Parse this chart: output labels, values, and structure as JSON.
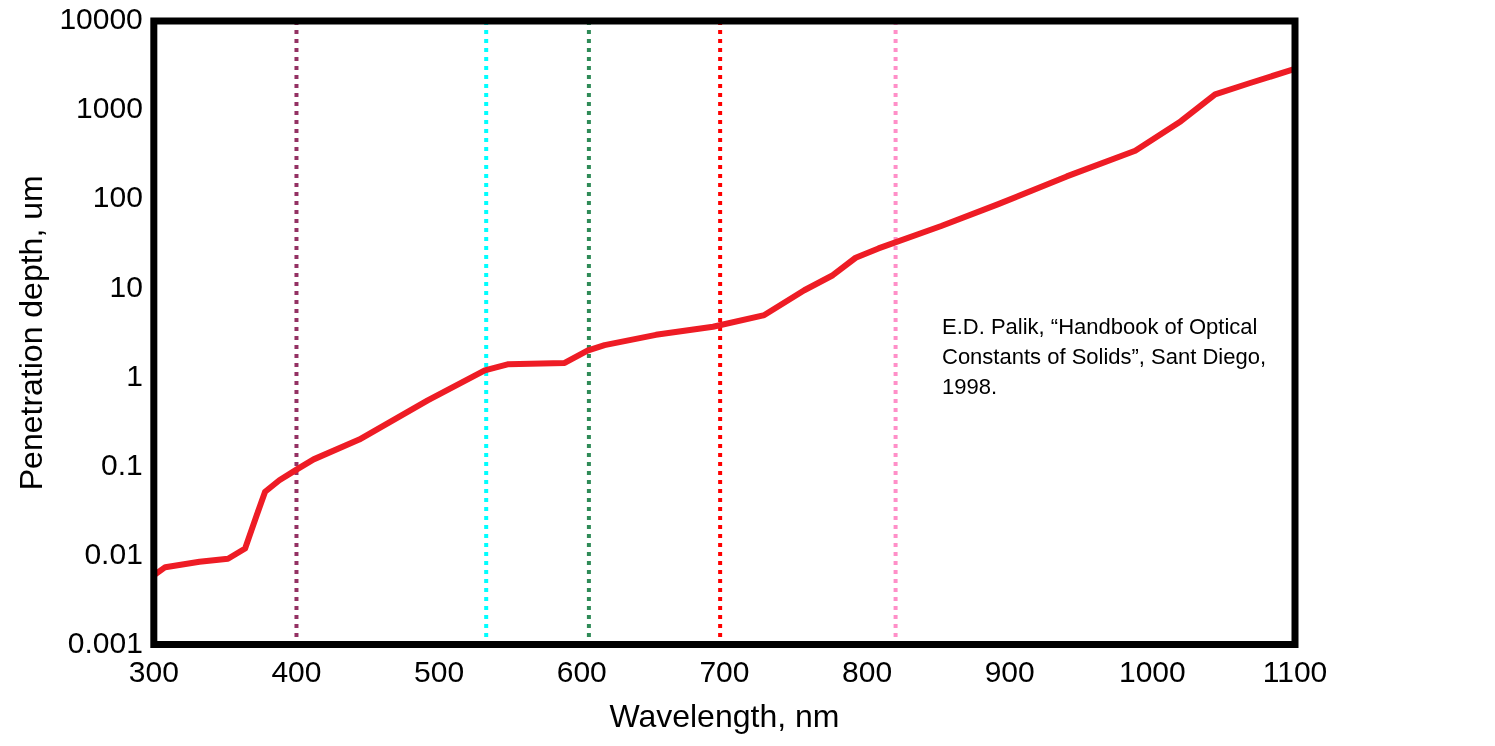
{
  "chart_data": {
    "type": "line",
    "xlabel": "Wavelength, nm",
    "ylabel": "Penetration depth, um",
    "x": [
      300,
      308,
      332,
      352,
      364,
      372,
      378,
      388,
      400,
      412,
      444,
      492,
      532,
      548,
      588,
      604,
      616,
      652,
      692,
      728,
      756,
      776,
      792,
      808,
      852,
      892,
      940,
      988,
      1020,
      1044,
      1068,
      1100
    ],
    "series": [
      {
        "color": "#ee1c25",
        "values": [
          0.006,
          0.0074,
          0.0085,
          0.0092,
          0.012,
          0.028,
          0.052,
          0.07,
          0.092,
          0.12,
          0.2,
          0.55,
          1.2,
          1.4,
          1.45,
          2,
          2.3,
          3,
          3.7,
          5,
          9.5,
          14,
          22,
          28,
          50,
          88,
          180,
          350,
          750,
          1500,
          2000,
          2900
        ]
      }
    ],
    "xlim": [
      300,
      1100
    ],
    "xticks": [
      300,
      400,
      500,
      600,
      700,
      800,
      900,
      1000,
      1100
    ],
    "ylim": [
      0.001,
      10000
    ],
    "yticks": [
      0.001,
      0.01,
      0.1,
      1,
      10,
      100,
      1000,
      10000
    ],
    "log": "y",
    "grid": false,
    "legend": false,
    "marker": "none",
    "line_style": "solid",
    "ref_lines": [
      {
        "axis": "x",
        "value": 400,
        "color": "#943163",
        "line_style": "dotted"
      },
      {
        "axis": "x",
        "value": 533,
        "color": "#00ffff",
        "line_style": "dotted"
      },
      {
        "axis": "x",
        "value": 605,
        "color": "#2e8b57",
        "line_style": "dotted"
      },
      {
        "axis": "x",
        "value": 697,
        "color": "#ff0000",
        "line_style": "dotted"
      },
      {
        "axis": "x",
        "value": 820,
        "color": "#ff8fc8",
        "line_style": "dotted"
      }
    ],
    "annotations": [
      "E.D. Palik, “Handbook of Optical Constants of Solids”, Sant Diego, 1998."
    ]
  }
}
